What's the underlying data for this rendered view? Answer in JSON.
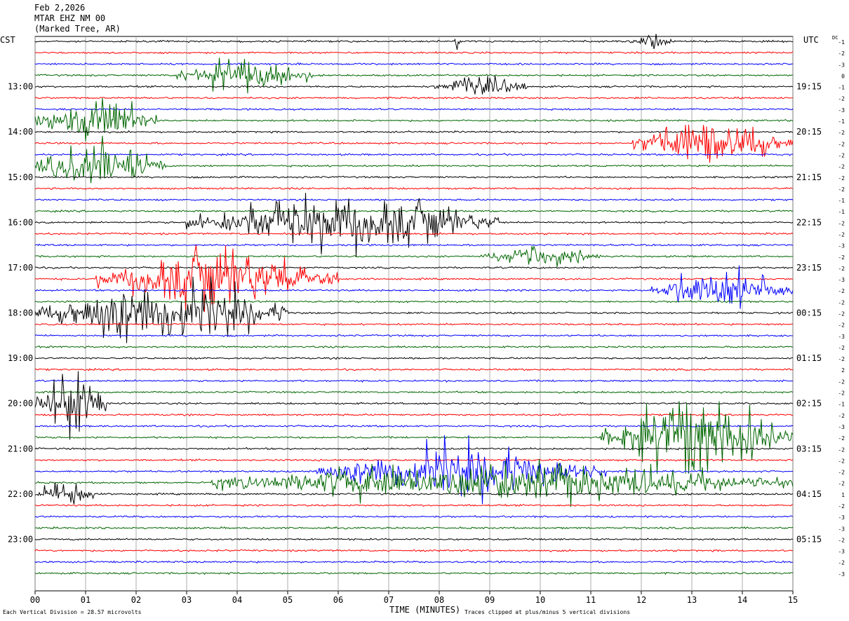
{
  "header": {
    "date": "Feb 2,2026",
    "station": "MTAR EHZ NM 00",
    "location": "(Marked Tree, AR)"
  },
  "left_axis_label": "CST",
  "right_axis_label": "UTC",
  "dc_label": "DC",
  "footer": {
    "scale_text": "Each Vertical Division =   28.57 microvolts",
    "xlabel": "TIME (MINUTES)",
    "clip_text": "Traces clipped at plus/minus 5 vertical divisions"
  },
  "chart_data": {
    "type": "line",
    "title": "MTAR EHZ NM 00",
    "xlabel": "TIME (MINUTES)",
    "x_ticks": [
      "00",
      "01",
      "02",
      "03",
      "04",
      "05",
      "06",
      "07",
      "08",
      "09",
      "10",
      "11",
      "12",
      "13",
      "14",
      "15"
    ],
    "xlim": [
      0,
      15
    ],
    "trace_count": 48,
    "trace_colors": [
      "#000000",
      "#ff0000",
      "#0000ff",
      "#006600"
    ],
    "left_hour_labels": [
      "13:00",
      "14:00",
      "15:00",
      "16:00",
      "17:00",
      "18:00",
      "19:00",
      "20:00",
      "21:00",
      "22:00",
      "23:00"
    ],
    "right_hour_labels": [
      "19:15",
      "20:15",
      "21:15",
      "22:15",
      "23:15",
      "00:15",
      "01:15",
      "02:15",
      "03:15",
      "04:15",
      "05:15"
    ],
    "dc_offsets": [
      "-1",
      "-2",
      "-3",
      "0",
      "-1",
      "-2",
      "-3",
      "-1",
      "-2",
      "-2",
      "-2",
      "-2",
      "-2",
      "-2",
      "-1",
      "-1",
      "-2",
      "-2",
      "-3",
      "-2",
      "-2",
      "-3",
      "-2",
      "-2",
      "-2",
      "-2",
      "-3",
      "-2",
      "-2",
      "2",
      "-2",
      "-2",
      "-1",
      "-2",
      "-3",
      "-2",
      "-2",
      "-2",
      "-2",
      "-2",
      "1",
      "-2",
      "-3",
      "-3",
      "-2",
      "-3",
      "-2",
      "-3"
    ],
    "events": [
      {
        "trace": 0,
        "start": 8.3,
        "end": 8.4,
        "amp": 1.2
      },
      {
        "trace": 0,
        "start": 11.7,
        "end": 12.6,
        "amp": 0.5
      },
      {
        "trace": 3,
        "start": 2.8,
        "end": 5.5,
        "amp": 1.1
      },
      {
        "trace": 4,
        "start": 7.9,
        "end": 9.8,
        "amp": 0.7
      },
      {
        "trace": 7,
        "start": 0.0,
        "end": 2.4,
        "amp": 1.5
      },
      {
        "trace": 9,
        "start": 11.8,
        "end": 15.0,
        "amp": 1.6
      },
      {
        "trace": 11,
        "start": 0.0,
        "end": 2.6,
        "amp": 1.6
      },
      {
        "trace": 16,
        "start": 3.0,
        "end": 9.2,
        "amp": 1.8
      },
      {
        "trace": 19,
        "start": 8.8,
        "end": 11.2,
        "amp": 0.6
      },
      {
        "trace": 21,
        "start": 1.2,
        "end": 6.0,
        "amp": 1.9
      },
      {
        "trace": 22,
        "start": 12.2,
        "end": 15.0,
        "amp": 1.3
      },
      {
        "trace": 24,
        "start": 0.0,
        "end": 5.0,
        "amp": 2.0
      },
      {
        "trace": 32,
        "start": 0.0,
        "end": 1.4,
        "amp": 2.2
      },
      {
        "trace": 35,
        "start": 11.2,
        "end": 15.0,
        "amp": 2.4
      },
      {
        "trace": 38,
        "start": 5.5,
        "end": 11.3,
        "amp": 1.5
      },
      {
        "trace": 39,
        "start": 3.5,
        "end": 15.0,
        "amp": 1.3
      },
      {
        "trace": 40,
        "start": 0.0,
        "end": 1.2,
        "amp": 0.9
      }
    ]
  }
}
